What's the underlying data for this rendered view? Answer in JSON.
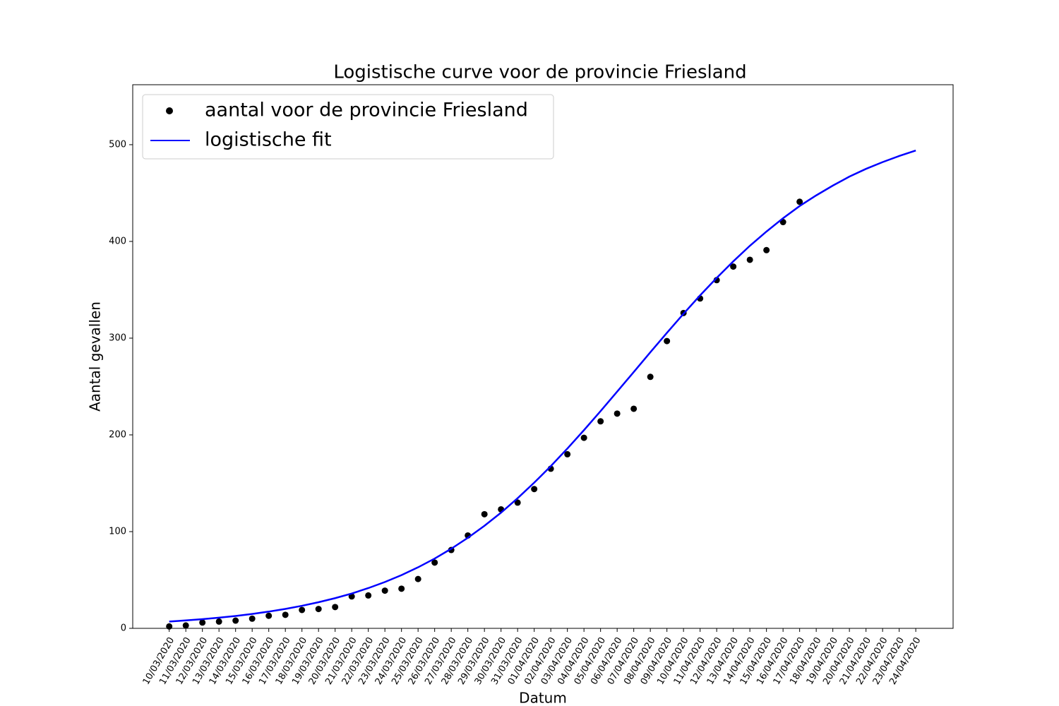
{
  "chart_data": {
    "type": "line",
    "title": "Logistische curve voor de provincie Friesland",
    "xlabel": "Datum",
    "ylabel": "Aantal gevallen",
    "categories": [
      "10/03/2020",
      "11/03/2020",
      "12/03/2020",
      "13/03/2020",
      "14/03/2020",
      "15/03/2020",
      "16/03/2020",
      "17/03/2020",
      "18/03/2020",
      "19/03/2020",
      "20/03/2020",
      "21/03/2020",
      "22/03/2020",
      "23/03/2020",
      "24/03/2020",
      "25/03/2020",
      "26/03/2020",
      "27/03/2020",
      "28/03/2020",
      "29/03/2020",
      "30/03/2020",
      "31/03/2020",
      "01/04/2020",
      "02/04/2020",
      "03/04/2020",
      "04/04/2020",
      "05/04/2020",
      "06/04/2020",
      "07/04/2020",
      "08/04/2020",
      "09/04/2020",
      "10/04/2020",
      "11/04/2020",
      "12/04/2020",
      "13/04/2020",
      "14/04/2020",
      "15/04/2020",
      "16/04/2020",
      "17/04/2020",
      "18/04/2020",
      "19/04/2020",
      "20/04/2020",
      "21/04/2020",
      "22/04/2020",
      "23/04/2020",
      "24/04/2020"
    ],
    "series": [
      {
        "name": "aantal voor de provincie Friesland",
        "color": "#000000",
        "mode": "markers",
        "values": [
          2,
          3,
          6,
          7,
          8,
          10,
          13,
          14,
          19,
          20,
          22,
          33,
          34,
          39,
          41,
          51,
          68,
          81,
          96,
          118,
          123,
          130,
          144,
          165,
          180,
          197,
          214,
          222,
          227,
          260,
          297,
          326,
          341,
          360,
          374,
          381,
          391,
          420,
          441,
          null,
          null,
          null,
          null,
          null,
          null,
          null
        ]
      },
      {
        "name": "logistische fit",
        "color": "#0000ff",
        "mode": "line",
        "values": [
          7,
          8.2,
          9.5,
          11,
          12.8,
          14.9,
          17.3,
          20.1,
          23.3,
          27,
          31.2,
          36,
          41.6,
          47.9,
          55,
          63.1,
          72.1,
          82.3,
          93.6,
          106,
          119.6,
          134.5,
          150.6,
          167.7,
          185.9,
          204.9,
          224.6,
          244.7,
          265,
          285.4,
          305.5,
          325.2,
          344.2,
          362.3,
          379.4,
          395.5,
          410.2,
          424,
          436.6,
          447.6,
          457.7,
          467,
          475,
          482,
          488.3,
          494
        ]
      }
    ],
    "ylim": [
      0,
      562
    ],
    "yticks": [
      0,
      100,
      200,
      300,
      400,
      500
    ],
    "legend": "upper left"
  }
}
